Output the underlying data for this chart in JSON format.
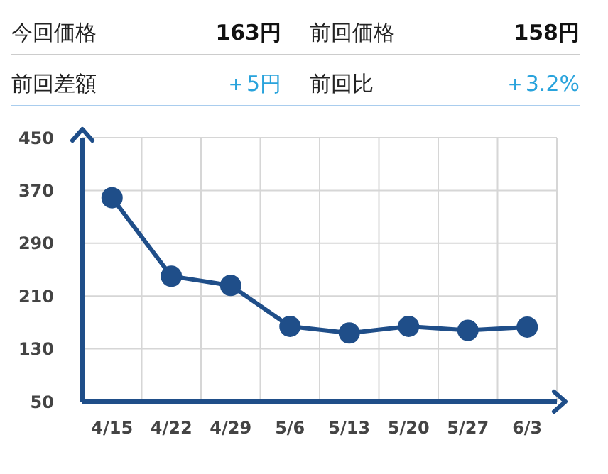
{
  "chart_data": {
    "type": "line",
    "annotations": [
      "今回価格",
      "163円",
      "前回価格",
      "158円",
      "前回差額",
      "＋5円",
      "前回比",
      "＋3.2%"
    ],
    "categories": [
      "4/15",
      "4/22",
      "4/29",
      "5/6",
      "5/13",
      "5/20",
      "5/27",
      "6/3"
    ],
    "series": [
      {
        "color": "#1f4e89",
        "values": [
          359,
          240,
          226,
          164,
          154,
          164,
          158,
          163
        ]
      }
    ],
    "ylim": [
      50,
      450
    ],
    "yticks": [
      50,
      130,
      210,
      290,
      370,
      450
    ],
    "grid": true,
    "marker": "circle",
    "line_style": "solid"
  }
}
